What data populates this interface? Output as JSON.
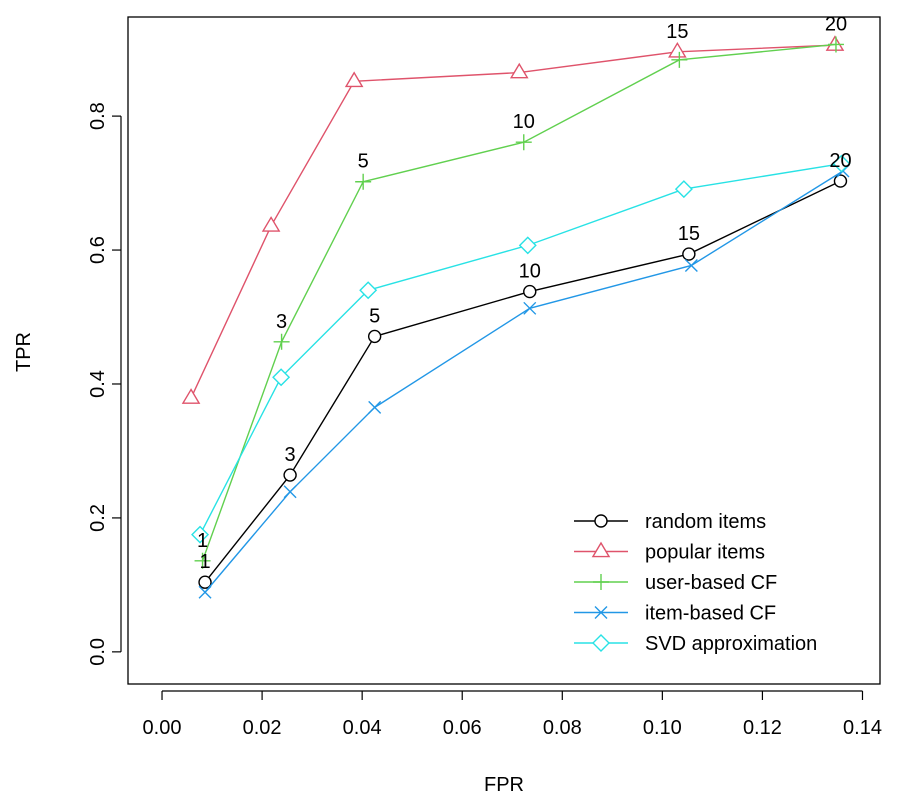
{
  "chart_data": {
    "type": "line",
    "xlabel": "FPR",
    "ylabel": "TPR",
    "xlim": [
      -0.0068,
      0.1435
    ],
    "ylim": [
      -0.048,
      0.948
    ],
    "xticks": [
      0.0,
      0.02,
      0.04,
      0.06,
      0.08,
      0.1,
      0.12,
      0.14
    ],
    "xtick_labels": [
      "0.00",
      "0.02",
      "0.04",
      "0.06",
      "0.08",
      "0.10",
      "0.12",
      "0.14"
    ],
    "yticks": [
      0.0,
      0.2,
      0.4,
      0.6,
      0.8
    ],
    "ytick_labels": [
      "0.0",
      "0.2",
      "0.4",
      "0.6",
      "0.8"
    ],
    "grid": false,
    "legend_position": "bottom-right",
    "series": [
      {
        "name": "random items",
        "color": "#000000",
        "marker": "circle",
        "x": [
          0.0086,
          0.0256,
          0.0425,
          0.0735,
          0.1053,
          0.1356
        ],
        "y": [
          0.104,
          0.264,
          0.471,
          0.538,
          0.594,
          0.703
        ]
      },
      {
        "name": "popular items",
        "color": "#DF536B",
        "marker": "triangle",
        "x": [
          0.0058,
          0.0218,
          0.0384,
          0.0714,
          0.103,
          0.1345
        ],
        "y": [
          0.379,
          0.636,
          0.852,
          0.865,
          0.896,
          0.906
        ]
      },
      {
        "name": "user-based CF",
        "color": "#61D04F",
        "marker": "plus",
        "x": [
          0.0081,
          0.0239,
          0.0402,
          0.0723,
          0.1034,
          0.1347
        ],
        "y": [
          0.136,
          0.463,
          0.702,
          0.761,
          0.884,
          0.907
        ]
      },
      {
        "name": "item-based CF",
        "color": "#2297E6",
        "marker": "cross",
        "x": [
          0.0086,
          0.0256,
          0.0425,
          0.0735,
          0.1058,
          0.1361
        ],
        "y": [
          0.089,
          0.239,
          0.365,
          0.513,
          0.577,
          0.718
        ]
      },
      {
        "name": "SVD approximation",
        "color": "#28E2E5",
        "marker": "diamond",
        "x": [
          0.0076,
          0.0238,
          0.0412,
          0.0731,
          0.1043,
          0.1358
        ],
        "y": [
          0.175,
          0.41,
          0.54,
          0.607,
          0.691,
          0.729
        ]
      }
    ],
    "annotations": [
      {
        "text": "1",
        "x": 0.0081,
        "y": 0.136
      },
      {
        "text": "3",
        "x": 0.0239,
        "y": 0.463
      },
      {
        "text": "5",
        "x": 0.0402,
        "y": 0.702
      },
      {
        "text": "10",
        "x": 0.0723,
        "y": 0.761
      },
      {
        "text": "15",
        "x": 0.103,
        "y": 0.896
      },
      {
        "text": "20",
        "x": 0.1347,
        "y": 0.907
      },
      {
        "text": "1",
        "x": 0.0086,
        "y": 0.104
      },
      {
        "text": "3",
        "x": 0.0256,
        "y": 0.264
      },
      {
        "text": "5",
        "x": 0.0425,
        "y": 0.471
      },
      {
        "text": "10",
        "x": 0.0735,
        "y": 0.538
      },
      {
        "text": "15",
        "x": 0.1053,
        "y": 0.594
      },
      {
        "text": "20",
        "x": 0.1356,
        "y": 0.703
      }
    ]
  }
}
